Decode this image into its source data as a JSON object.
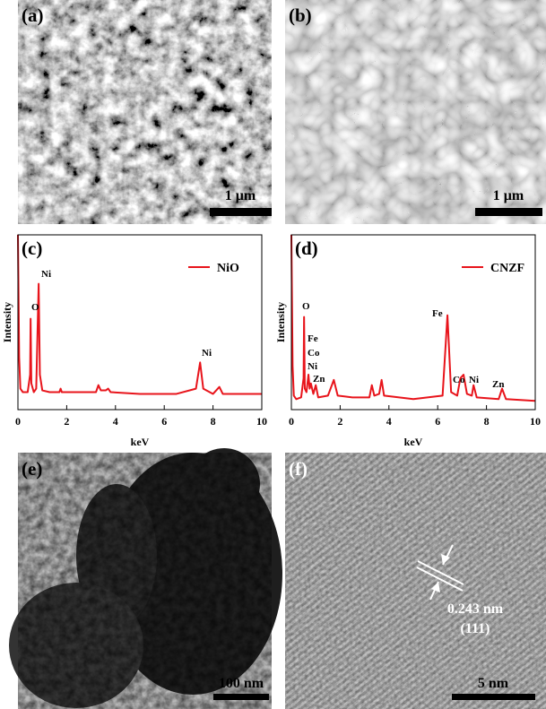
{
  "panels": [
    {
      "label": "(a)",
      "scale_bar": "1 μm"
    },
    {
      "label": "(b)",
      "scale_bar": "1 μm"
    },
    {
      "label": "(e)",
      "scale_bar": "100 nm"
    },
    {
      "label": "(f)",
      "scale_bar": "5 nm",
      "annotations": [
        "0.243 nm",
        "(111)"
      ]
    }
  ],
  "chart_data": [
    {
      "type": "line",
      "panel_label": "(c)",
      "xlabel": "keV",
      "ylabel": "Intensity",
      "xlim": [
        0,
        10
      ],
      "xticks": [
        0,
        2,
        4,
        6,
        8,
        10
      ],
      "ylim": [
        0,
        100
      ],
      "legend": "upper right",
      "x": [
        0,
        0.05,
        0.1,
        0.2,
        0.4,
        0.5,
        0.52,
        0.55,
        0.65,
        0.75,
        0.85,
        0.9,
        1.0,
        1.3,
        1.7,
        1.75,
        1.8,
        2.5,
        3.2,
        3.3,
        3.4,
        3.6,
        3.7,
        3.8,
        5,
        6.5,
        7.3,
        7.47,
        7.6,
        8.0,
        8.26,
        8.4,
        9,
        10
      ],
      "series": [
        {
          "name": "NiO",
          "color": "#e8141b",
          "values": [
            100,
            30,
            12,
            10,
            10,
            20,
            52,
            15,
            10,
            12,
            72,
            20,
            11,
            10,
            10,
            12,
            10,
            10,
            10,
            14,
            11,
            11,
            12,
            10,
            9,
            9,
            12,
            27,
            12,
            9,
            13,
            9,
            9,
            9
          ]
        }
      ],
      "annotations": [
        "O",
        "Ni",
        "Ni"
      ]
    },
    {
      "type": "line",
      "panel_label": "(d)",
      "xlabel": "keV",
      "ylabel": "Intensity",
      "xlim": [
        0,
        10
      ],
      "xticks": [
        0,
        2,
        4,
        6,
        8,
        10
      ],
      "ylim": [
        0,
        100
      ],
      "legend": "upper right",
      "x": [
        0,
        0.05,
        0.1,
        0.2,
        0.4,
        0.5,
        0.52,
        0.55,
        0.62,
        0.7,
        0.75,
        0.8,
        0.9,
        1.0,
        1.1,
        1.5,
        1.74,
        1.9,
        2.5,
        3.2,
        3.3,
        3.4,
        3.6,
        3.7,
        3.8,
        5,
        6.2,
        6.4,
        6.55,
        6.8,
        6.93,
        7.06,
        7.2,
        7.4,
        7.47,
        7.6,
        8.5,
        8.64,
        8.8,
        10
      ],
      "series": [
        {
          "name": "CNZF",
          "color": "#e8141b",
          "values": [
            100,
            25,
            8,
            6,
            7,
            18,
            53,
            12,
            10,
            20,
            12,
            15,
            9,
            14,
            7,
            8,
            17,
            8,
            7,
            7,
            14,
            8,
            9,
            17,
            8,
            6,
            8,
            54,
            10,
            8,
            18,
            20,
            9,
            8,
            14,
            7,
            6,
            12,
            6,
            5
          ]
        }
      ],
      "annotations": [
        "O",
        "Fe",
        "Co",
        "Ni",
        "Zn",
        "Fe",
        "Co",
        "Ni",
        "Zn"
      ]
    }
  ]
}
